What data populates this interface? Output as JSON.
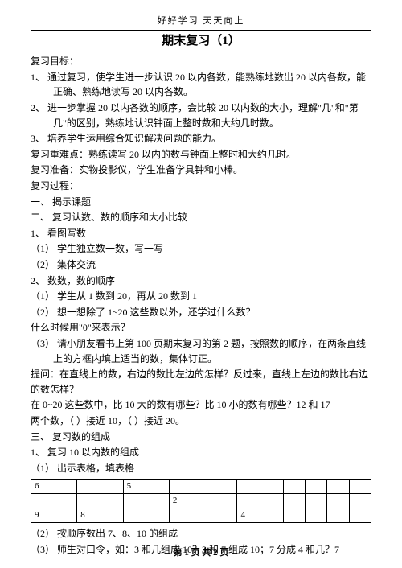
{
  "header_small": "好好学习  天天向上",
  "title": "期末复习（1）",
  "sec_goal": "复习目标：",
  "goal_1": "1、  通过复习，使学生进一步认识 20 以内各数，能熟练地数出 20 以内各数，能正确、熟练地读写 20 以内各数。",
  "goal_2": "2、  进一步掌握 20 以内各数的顺序，会比较 20 以内数的大小，理解\"几\"和\"第几\"的区别，熟练地认识钟面上整时数和大约几时数。",
  "goal_3": "3、  培养学生运用综合知识解决问题的能力。",
  "diff": "复习重难点：熟练读写 20 以内的数与钟面上整时和大约几时。",
  "prep": "复习准备：实物投影仪，学生准备学具钟和小棒。",
  "proc": "复习过程：",
  "p1": "一、    揭示课题",
  "p2": "二、    复习认数、数的顺序和大小比较",
  "p2_1": "1、  看图写数",
  "p2_1a": "（1）  学生独立数一数，写一写",
  "p2_1b": "（2）  集体交流",
  "p2_2": "2、  数数，数的顺序",
  "p2_2a": "（1）  学生从 1 数到 20，再从 20 数到 1",
  "p2_2b": "（2）  想一想除了 1~20 这些数以外，还学过什么数？",
  "q1": "什么时候用\"0\"来表示？",
  "p2_2c": "（3）  请小朋友看书上第 100 页期末复习的第 2 题，按照数的顺序，在两条直线上的方框内填上适当的数，集体订正。",
  "ask": "提问：在直线上的数，右边的数比左边的怎样？反过来，直线上左边的数比右边的数怎样？",
  "range": "        在 0~20 这些数中，比 10 大的数有哪些？比 10 小的数有哪些？12 和 17",
  "two": "两个数，（  ）接近 10，（  ）接近 20。",
  "p3": "三、    复习数的组成",
  "p3_1": "1、    复习 10 以内数的组成",
  "p3_1a": "（1）  出示表格，填表格",
  "tbl": {
    "cols": 10,
    "rows": [
      [
        "6",
        "",
        "5",
        "",
        "",
        "",
        "",
        "",
        "",
        ""
      ],
      [
        "",
        "",
        "",
        "2",
        "",
        "",
        "",
        "",
        "",
        ""
      ],
      [
        "9",
        "8",
        "",
        "",
        "",
        "4",
        "",
        "",
        "",
        ""
      ]
    ]
  },
  "p3_1b": "（2）  按顺序数出 7、8、10 的组成",
  "p3_1c": "（3）  师生对口令，如：3 和几组成 10？3 和 7 组成 10；7 分成 4 和几？7",
  "footer": "第 1 页 共 2 页"
}
